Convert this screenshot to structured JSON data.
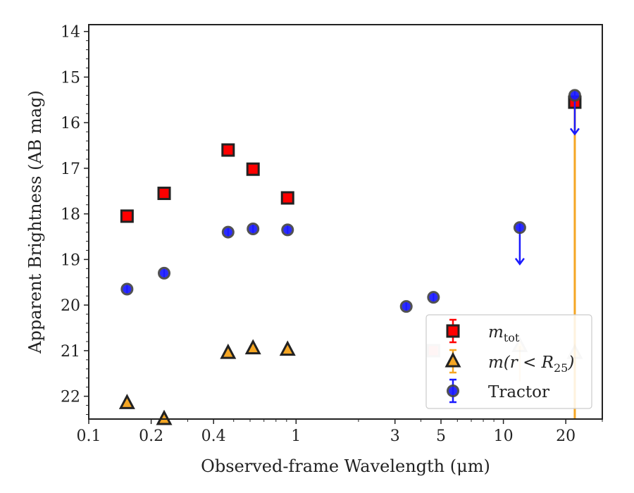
{
  "chart_data": {
    "type": "scatter",
    "xscale": "log",
    "xlim": [
      0.1,
      30
    ],
    "ylim": [
      22.5,
      13.85
    ],
    "y_inverted": true,
    "xlabel": "Observed-frame Wavelength (μm)",
    "ylabel": "Apparent Brightness (AB mag)",
    "x_ticks": [
      0.1,
      0.2,
      0.4,
      1,
      3,
      5,
      10,
      20
    ],
    "x_tick_labels": [
      "0.1",
      "0.2",
      "0.4",
      "1",
      "3",
      "5",
      "10",
      "20"
    ],
    "y_ticks": [
      14,
      15,
      16,
      17,
      18,
      19,
      20,
      21,
      22
    ],
    "y_tick_labels": [
      "14",
      "15",
      "16",
      "17",
      "18",
      "19",
      "20",
      "21",
      "22"
    ],
    "legend_position": "lower right",
    "series": [
      {
        "name": "m_tot",
        "legend_main": "m",
        "legend_sub": "tot",
        "marker": "square",
        "color": "#ff0000",
        "edge": "#222222",
        "points": [
          {
            "x": 0.153,
            "y": 18.05
          },
          {
            "x": 0.231,
            "y": 17.55
          },
          {
            "x": 0.47,
            "y": 16.6
          },
          {
            "x": 0.62,
            "y": 17.02
          },
          {
            "x": 0.91,
            "y": 17.65
          },
          {
            "x": 4.6,
            "y": 21.0,
            "faded": true
          },
          {
            "x": 22.1,
            "y": 15.55,
            "yerr_low": 16.0,
            "yerr_color": "#f5a623"
          }
        ]
      },
      {
        "name": "m(r < R25)",
        "legend_main": "m(r < R",
        "legend_sub": "25",
        "legend_close": ")",
        "marker": "triangle",
        "color": "#f5a623",
        "edge": "#222222",
        "points": [
          {
            "x": 0.153,
            "y": 22.15
          },
          {
            "x": 0.231,
            "y": 22.5
          },
          {
            "x": 0.47,
            "y": 21.05
          },
          {
            "x": 0.62,
            "y": 20.95
          },
          {
            "x": 0.91,
            "y": 20.98
          },
          {
            "x": 12.0,
            "y": 20.9,
            "faded": true,
            "upper_limit": true
          },
          {
            "x": 22.1,
            "y": 21.05,
            "faded": true
          }
        ]
      },
      {
        "name": "Tractor",
        "marker": "circle",
        "color": "#1a1aff",
        "edge": "#444444",
        "points": [
          {
            "x": 0.153,
            "y": 19.65
          },
          {
            "x": 0.231,
            "y": 19.3
          },
          {
            "x": 0.47,
            "y": 18.4
          },
          {
            "x": 0.62,
            "y": 18.33
          },
          {
            "x": 0.91,
            "y": 18.35
          },
          {
            "x": 3.4,
            "y": 20.03
          },
          {
            "x": 4.6,
            "y": 19.83
          },
          {
            "x": 12.0,
            "y": 18.3,
            "upper_limit": true,
            "arrow_to": 19.1
          },
          {
            "x": 22.1,
            "y": 15.4,
            "upper_limit": true,
            "arrow_to": 16.25
          }
        ]
      }
    ],
    "orange_error_bar": {
      "x": 22.1,
      "from_y": 15.55,
      "to_y": 22.5,
      "color": "#f5a623"
    }
  }
}
